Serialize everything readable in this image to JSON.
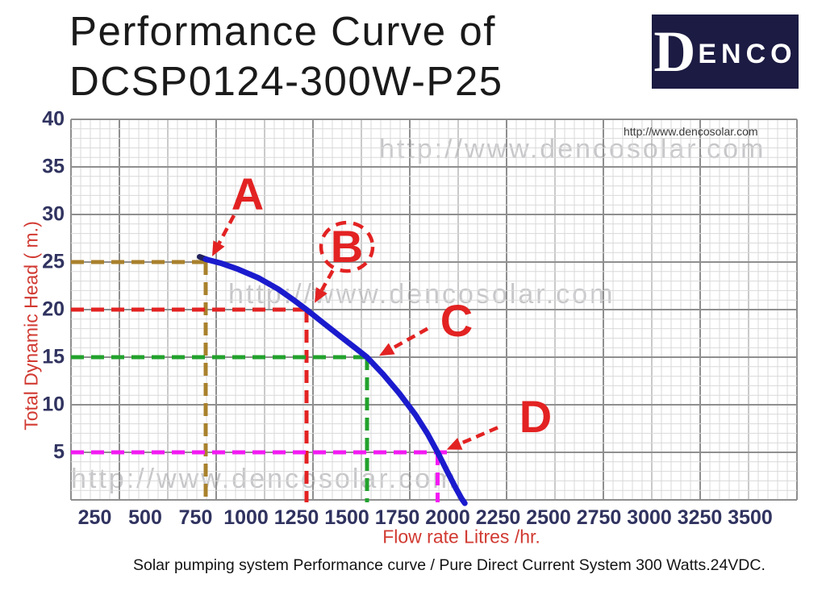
{
  "title": {
    "line1": "Performance Curve of",
    "line2": "DCSP0124-300W-P25"
  },
  "logo": {
    "d_letter": "D",
    "rest": "ENCO"
  },
  "watermark": {
    "url": "http://www.dencosolar.com"
  },
  "caption": "Solar pumping system Performance curve / Pure Direct Current System 300 Watts.24VDC.",
  "chart_data": {
    "type": "line",
    "xlabel": "Flow rate Litres /hr.",
    "ylabel": "Total Dynamic Head ( m.)",
    "xlim": [
      0,
      3600
    ],
    "ylim": [
      0,
      40
    ],
    "x_ticks": [
      250,
      500,
      750,
      1000,
      1250,
      1500,
      1750,
      2000,
      2250,
      2500,
      2750,
      3000,
      3250,
      3500
    ],
    "y_ticks": [
      40,
      35,
      30,
      25,
      20,
      15,
      10,
      5
    ],
    "grid": true,
    "curve": {
      "name": "head-flow performance curve",
      "color": "#1b1bce",
      "start_cap_color": "#23235c",
      "start_cap_points": [
        [
          770,
          25.55
        ],
        [
          808,
          25.25
        ]
      ],
      "points": [
        [
          800,
          25.3
        ],
        [
          880,
          24.85
        ],
        [
          960,
          24.25
        ],
        [
          1060,
          23.35
        ],
        [
          1160,
          22.15
        ],
        [
          1240,
          20.95
        ],
        [
          1300,
          20.0
        ],
        [
          1380,
          18.65
        ],
        [
          1470,
          17.15
        ],
        [
          1540,
          16.0
        ],
        [
          1600,
          15.0
        ],
        [
          1680,
          13.2
        ],
        [
          1760,
          11.2
        ],
        [
          1840,
          8.95
        ],
        [
          1900,
          6.95
        ],
        [
          1950,
          5.0
        ],
        [
          2000,
          2.9
        ],
        [
          2040,
          1.25
        ],
        [
          2070,
          0.1
        ],
        [
          2085,
          -0.35
        ]
      ]
    },
    "annotations": [
      {
        "label": "A",
        "flow": 800,
        "head": 25,
        "color": "#a9812c",
        "circled": false,
        "label_at": {
          "flow": 1008,
          "head": 32.1
        },
        "arrow": {
          "from": {
            "flow": 940,
            "head": 29.9
          },
          "to": {
            "flow": 832,
            "head": 25.6
          }
        }
      },
      {
        "label": "B",
        "flow": 1300,
        "head": 20,
        "color": "#e32222",
        "circled": true,
        "label_at": {
          "flow": 1500,
          "head": 26.6
        },
        "arrow": {
          "from": {
            "flow": 1430,
            "head": 24.1
          },
          "to": {
            "flow": 1340,
            "head": 20.7
          }
        }
      },
      {
        "label": "C",
        "flow": 1600,
        "head": 15,
        "color": "#22a22c",
        "circled": false,
        "label_at": {
          "flow": 2044,
          "head": 18.8
        },
        "arrow": {
          "from": {
            "flow": 1900,
            "head": 18.0
          },
          "to": {
            "flow": 1660,
            "head": 15.15
          }
        }
      },
      {
        "label": "D",
        "flow": 1950,
        "head": 5,
        "color": "#f31af3",
        "circled": false,
        "label_at": {
          "flow": 2436,
          "head": 8.7
        },
        "arrow": {
          "from": {
            "flow": 2248,
            "head": 7.6
          },
          "to": {
            "flow": 1995,
            "head": 5.3
          }
        }
      }
    ],
    "annotation_letter_color": "#e32222",
    "arrow_color": "#e32222"
  }
}
